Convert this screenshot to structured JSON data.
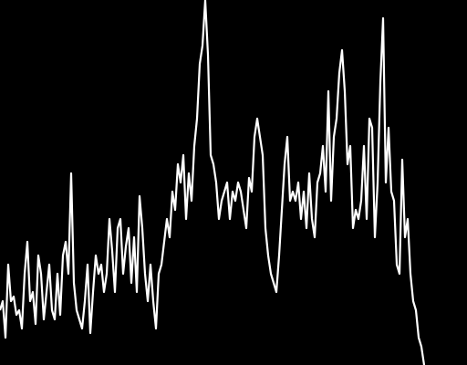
{
  "chart_data": {
    "type": "line",
    "color": "#ffffff",
    "ylim": [
      0,
      400
    ],
    "values": [
      60,
      70,
      30,
      110,
      70,
      75,
      55,
      60,
      40,
      100,
      135,
      70,
      80,
      45,
      120,
      100,
      50,
      80,
      110,
      60,
      50,
      100,
      55,
      120,
      135,
      100,
      210,
      90,
      60,
      50,
      40,
      70,
      110,
      35,
      80,
      120,
      100,
      110,
      80,
      100,
      160,
      125,
      80,
      150,
      160,
      100,
      130,
      150,
      90,
      140,
      80,
      185,
      150,
      100,
      70,
      110,
      70,
      40,
      100,
      110,
      135,
      160,
      140,
      190,
      170,
      220,
      200,
      230,
      160,
      210,
      180,
      240,
      270,
      330,
      350,
      400,
      340,
      230,
      220,
      200,
      160,
      180,
      190,
      200,
      160,
      190,
      180,
      200,
      190,
      170,
      150,
      205,
      190,
      250,
      270,
      250,
      230,
      150,
      120,
      100,
      90,
      80,
      120,
      170,
      220,
      250,
      180,
      190,
      180,
      200,
      160,
      190,
      150,
      210,
      160,
      140,
      200,
      210,
      240,
      190,
      300,
      180,
      250,
      270,
      320,
      345,
      300,
      220,
      240,
      150,
      170,
      160,
      180,
      240,
      160,
      270,
      260,
      140,
      200,
      310,
      380,
      200,
      260,
      190,
      180,
      110,
      100,
      225,
      140,
      160,
      100,
      70,
      60,
      30,
      20,
      0
    ]
  }
}
